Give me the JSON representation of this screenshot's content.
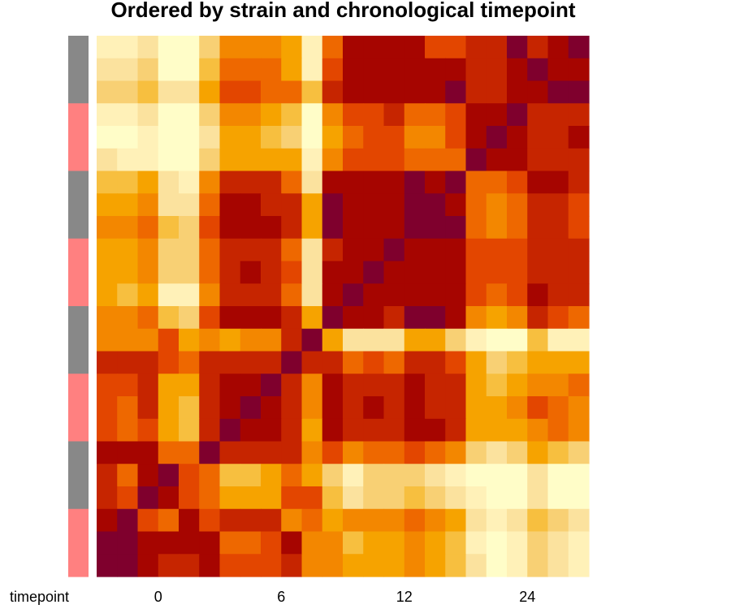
{
  "colors": {
    "strain_a": "#888888",
    "strain_b": "#ff8080",
    "scale": [
      "#fffdc8",
      "#fff1b8",
      "#fbe29e",
      "#f8d074",
      "#f7bf3f",
      "#f6a300",
      "#f38700",
      "#ee6800",
      "#e34600",
      "#c62500",
      "#a60500",
      "#7f002d"
    ]
  },
  "chart_data": {
    "type": "heatmap",
    "title": "Ordered by strain and chronological timepoint",
    "xlabel": "timepoint",
    "x_tick_labels": [
      {
        "label": "0",
        "col": 3
      },
      {
        "label": "6",
        "col": 9
      },
      {
        "label": "12",
        "col": 15
      },
      {
        "label": "24",
        "col": 21
      }
    ],
    "row_groups": [
      "strain_a",
      "strain_a",
      "strain_a",
      "strain_b",
      "strain_b",
      "strain_b",
      "strain_a",
      "strain_a",
      "strain_a",
      "strain_b",
      "strain_b",
      "strain_b",
      "strain_a",
      "strain_a",
      "strain_a",
      "strain_b",
      "strain_b",
      "strain_b",
      "strain_a",
      "strain_a",
      "strain_a",
      "strain_b",
      "strain_b",
      "strain_b"
    ],
    "value_range": [
      0,
      11
    ],
    "matrix": [
      [
        1,
        1,
        2,
        0,
        0,
        3,
        6,
        6,
        6,
        5,
        1,
        7,
        10,
        10,
        10,
        10,
        8,
        8,
        9,
        9,
        11,
        9,
        10,
        11
      ],
      [
        2,
        2,
        3,
        0,
        0,
        4,
        7,
        7,
        7,
        5,
        1,
        8,
        10,
        10,
        10,
        10,
        10,
        10,
        9,
        9,
        10,
        11,
        10,
        10
      ],
      [
        3,
        3,
        4,
        2,
        2,
        5,
        8,
        8,
        7,
        7,
        4,
        9,
        10,
        10,
        10,
        10,
        10,
        11,
        9,
        9,
        10,
        10,
        11,
        11
      ],
      [
        1,
        1,
        2,
        0,
        0,
        3,
        6,
        6,
        5,
        4,
        0,
        6,
        8,
        8,
        9,
        7,
        7,
        8,
        10,
        10,
        11,
        9,
        9,
        9
      ],
      [
        0,
        0,
        1,
        0,
        0,
        2,
        5,
        5,
        4,
        3,
        0,
        5,
        7,
        8,
        8,
        6,
        6,
        8,
        10,
        11,
        10,
        9,
        9,
        10
      ],
      [
        2,
        1,
        1,
        0,
        0,
        3,
        5,
        5,
        5,
        5,
        1,
        6,
        8,
        8,
        8,
        7,
        7,
        7,
        11,
        10,
        10,
        9,
        9,
        9
      ],
      [
        4,
        4,
        5,
        2,
        1,
        6,
        9,
        9,
        9,
        7,
        2,
        10,
        10,
        10,
        10,
        11,
        10,
        11,
        7,
        7,
        8,
        10,
        10,
        9
      ],
      [
        5,
        5,
        6,
        2,
        2,
        7,
        10,
        10,
        9,
        9,
        5,
        11,
        10,
        10,
        10,
        11,
        11,
        10,
        7,
        6,
        7,
        9,
        9,
        8
      ],
      [
        6,
        6,
        7,
        4,
        3,
        8,
        10,
        10,
        10,
        9,
        5,
        11,
        10,
        10,
        10,
        11,
        11,
        11,
        7,
        6,
        7,
        9,
        9,
        8
      ],
      [
        5,
        5,
        6,
        3,
        3,
        7,
        9,
        9,
        9,
        7,
        2,
        9,
        10,
        10,
        11,
        10,
        10,
        10,
        8,
        8,
        8,
        9,
        9,
        9
      ],
      [
        5,
        5,
        6,
        3,
        3,
        7,
        9,
        10,
        9,
        8,
        2,
        10,
        10,
        11,
        10,
        10,
        10,
        10,
        8,
        8,
        8,
        9,
        9,
        9
      ],
      [
        5,
        4,
        5,
        1,
        1,
        6,
        9,
        9,
        9,
        7,
        2,
        10,
        11,
        10,
        10,
        10,
        10,
        10,
        8,
        7,
        8,
        10,
        9,
        9
      ],
      [
        6,
        6,
        7,
        4,
        3,
        8,
        10,
        10,
        10,
        9,
        5,
        11,
        10,
        10,
        9,
        11,
        11,
        10,
        6,
        5,
        6,
        9,
        8,
        7
      ],
      [
        6,
        6,
        6,
        8,
        5,
        6,
        5,
        6,
        6,
        9,
        11,
        5,
        2,
        2,
        2,
        5,
        5,
        3,
        1,
        0,
        0,
        4,
        1,
        1
      ],
      [
        9,
        9,
        9,
        8,
        7,
        9,
        9,
        9,
        9,
        11,
        9,
        9,
        7,
        8,
        7,
        9,
        9,
        8,
        5,
        3,
        4,
        5,
        5,
        5
      ],
      [
        8,
        8,
        9,
        5,
        5,
        9,
        10,
        10,
        11,
        9,
        6,
        10,
        9,
        9,
        9,
        10,
        9,
        9,
        5,
        4,
        5,
        6,
        6,
        7
      ],
      [
        8,
        7,
        9,
        5,
        4,
        9,
        10,
        11,
        10,
        9,
        6,
        10,
        9,
        10,
        9,
        10,
        9,
        9,
        5,
        5,
        6,
        8,
        7,
        6
      ],
      [
        8,
        7,
        8,
        5,
        4,
        9,
        11,
        10,
        10,
        9,
        5,
        10,
        9,
        9,
        9,
        10,
        10,
        9,
        5,
        5,
        5,
        6,
        7,
        6
      ],
      [
        10,
        10,
        10,
        7,
        7,
        11,
        9,
        9,
        9,
        9,
        6,
        8,
        6,
        7,
        7,
        8,
        7,
        6,
        3,
        2,
        3,
        5,
        4,
        3
      ],
      [
        9,
        7,
        10,
        11,
        8,
        7,
        4,
        4,
        5,
        7,
        5,
        3,
        1,
        3,
        3,
        3,
        2,
        1,
        0,
        0,
        0,
        2,
        0,
        0
      ],
      [
        9,
        8,
        11,
        10,
        8,
        7,
        5,
        5,
        5,
        8,
        8,
        4,
        2,
        3,
        3,
        4,
        3,
        2,
        1,
        0,
        0,
        2,
        0,
        0
      ],
      [
        10,
        11,
        8,
        7,
        10,
        8,
        9,
        9,
        9,
        6,
        7,
        5,
        6,
        6,
        6,
        7,
        6,
        5,
        2,
        1,
        2,
        4,
        3,
        2
      ],
      [
        11,
        11,
        10,
        10,
        10,
        10,
        7,
        7,
        8,
        10,
        6,
        6,
        4,
        5,
        5,
        6,
        5,
        4,
        1,
        0,
        1,
        3,
        2,
        1
      ],
      [
        11,
        11,
        10,
        9,
        9,
        10,
        8,
        8,
        8,
        9,
        6,
        6,
        5,
        5,
        5,
        6,
        5,
        4,
        2,
        0,
        1,
        3,
        2,
        1
      ]
    ]
  }
}
